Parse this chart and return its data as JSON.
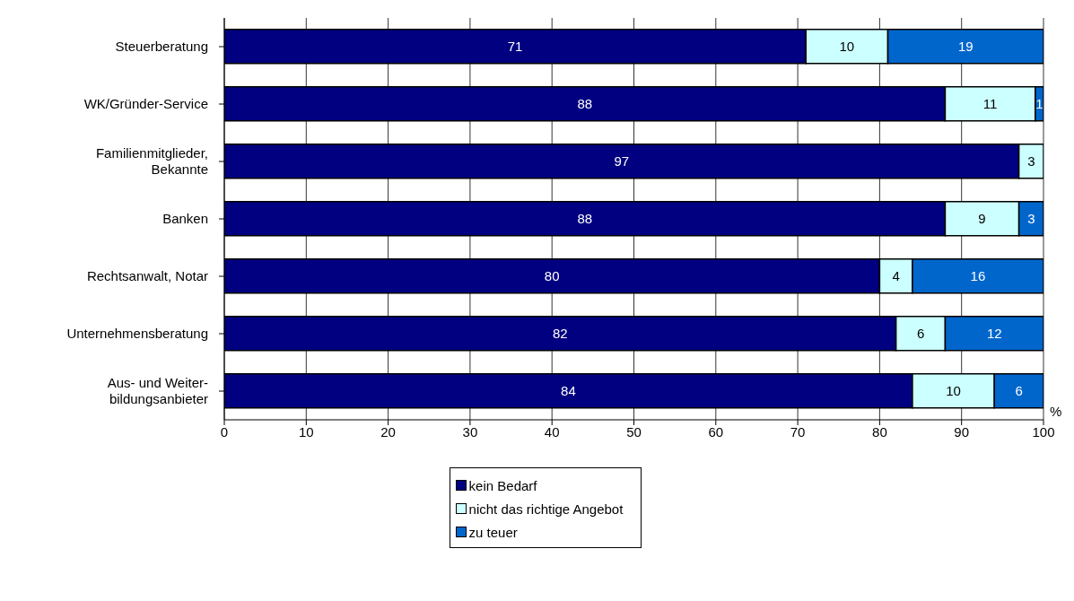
{
  "chart_data": {
    "type": "bar",
    "orientation": "horizontal",
    "stacked": true,
    "xlabel": "%",
    "categories": [
      "Steuerberatung",
      "WK/Gründer-Service",
      "Familienmitglieder,\nBekannte",
      "Banken",
      "Rechtsanwalt, Notar",
      "Unternehmensberatung",
      "Aus- und Weiter-\nbildungsanbieter"
    ],
    "series": [
      {
        "name": "kein Bedarf",
        "color": "#000080",
        "values": [
          71,
          88,
          97,
          88,
          80,
          82,
          84
        ]
      },
      {
        "name": "nicht das richtige Angebot",
        "color": "#ccffff",
        "values": [
          10,
          11,
          3,
          9,
          4,
          6,
          10
        ]
      },
      {
        "name": "zu teuer",
        "color": "#0066cc",
        "values": [
          19,
          1,
          null,
          3,
          16,
          12,
          6
        ]
      }
    ],
    "xlim": [
      0,
      100
    ],
    "xticks": [
      0,
      10,
      20,
      30,
      40,
      50,
      60,
      70,
      80,
      90,
      100
    ],
    "grid": "x",
    "legend": "bottom",
    "data_labels": true
  }
}
